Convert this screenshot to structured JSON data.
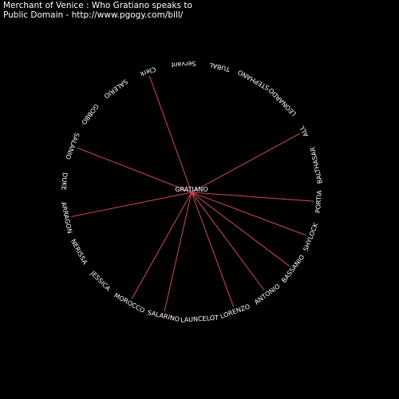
{
  "header": {
    "title": "Merchant of Venice : Who Gratiano speaks to",
    "subtitle": "Public Domain - http://www.pgogy.com/bill/"
  },
  "diagram": {
    "center": "GRATIANO",
    "edge_color": "#d04a5a",
    "text_color": "#ffffff",
    "background": "#000000",
    "nodes": [
      {
        "label": "Clerk",
        "connected": true
      },
      {
        "label": "Servant",
        "connected": false
      },
      {
        "label": "TUBAL",
        "connected": false
      },
      {
        "label": "STEPHANO",
        "connected": false
      },
      {
        "label": "LEONARDO",
        "connected": false
      },
      {
        "label": "ALL",
        "connected": true
      },
      {
        "label": "BALTHASAR",
        "connected": false
      },
      {
        "label": "PORTIA",
        "connected": true
      },
      {
        "label": "SHYLOCK",
        "connected": true
      },
      {
        "label": "BASSANIO",
        "connected": true
      },
      {
        "label": "ANTONIO",
        "connected": true
      },
      {
        "label": "LORENZO",
        "connected": true
      },
      {
        "label": "LAUNCELOT",
        "connected": false
      },
      {
        "label": "SALARINO",
        "connected": true
      },
      {
        "label": "MOROCCO",
        "connected": true
      },
      {
        "label": "JESSICA",
        "connected": false
      },
      {
        "label": "NERISSA",
        "connected": false
      },
      {
        "label": "ARRAGON",
        "connected": true
      },
      {
        "label": "DUKE",
        "connected": false
      },
      {
        "label": "SALANIO",
        "connected": true
      },
      {
        "label": "GOBBO",
        "connected": false
      },
      {
        "label": "SALERIO",
        "connected": false
      }
    ]
  }
}
